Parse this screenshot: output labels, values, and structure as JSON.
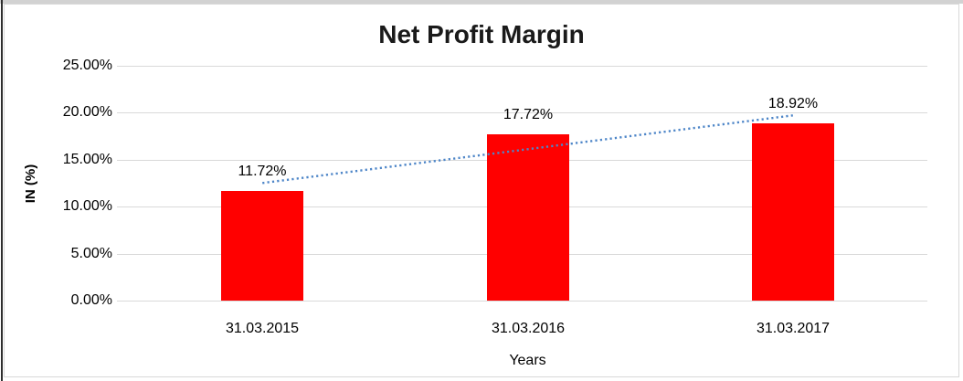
{
  "frame": {
    "background": "#ffffff",
    "outer_top_color": "#d2d2d2",
    "outer_left_color": "#2e2e2e",
    "chart_border_color": "#d9d9d9"
  },
  "chart_data": {
    "type": "bar",
    "title": "Net Profit Margin",
    "xlabel": "Years",
    "ylabel": "IN (%)",
    "categories": [
      "31.03.2015",
      "31.03.2016",
      "31.03.2017"
    ],
    "values": [
      11.72,
      17.72,
      18.92
    ],
    "value_labels": [
      "11.72%",
      "17.72%",
      "18.92%"
    ],
    "ylim": [
      0,
      25
    ],
    "ytick_step": 5,
    "ytick_labels": [
      "0.00%",
      "5.00%",
      "10.00%",
      "15.00%",
      "20.00%",
      "25.00%"
    ],
    "grid": true,
    "legend": "none",
    "bar_color": "#ff0000",
    "trendline": {
      "type": "linear",
      "style": "dotted",
      "color": "#4e86c8"
    }
  }
}
